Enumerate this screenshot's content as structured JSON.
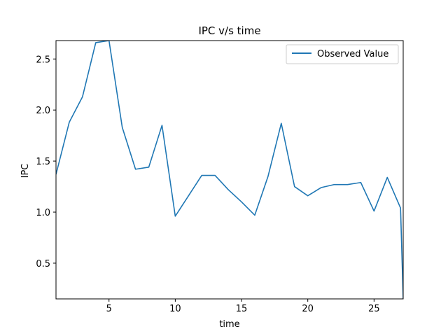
{
  "chart_data": {
    "type": "line",
    "title": "IPC v/s time",
    "xlabel": "time",
    "ylabel": "IPC",
    "xlim": [
      1,
      27.2
    ],
    "ylim": [
      0.15,
      2.68
    ],
    "xticks": [
      5,
      10,
      15,
      20,
      25
    ],
    "yticks": [
      0.5,
      1.0,
      1.5,
      2.0,
      2.5
    ],
    "xtick_labels": [
      "5",
      "10",
      "15",
      "20",
      "25"
    ],
    "ytick_labels": [
      "0.5",
      "1.0",
      "1.5",
      "2.0",
      "2.5"
    ],
    "legend_position": "top-right",
    "grid": false,
    "series": [
      {
        "name": "Observed Value",
        "color": "#1f77b4",
        "x": [
          1,
          2,
          3,
          4,
          5,
          6,
          7,
          8,
          9,
          10,
          11,
          12,
          13,
          14,
          15,
          16,
          17,
          18,
          19,
          20,
          21,
          22,
          23,
          24,
          25,
          26,
          27,
          27.2
        ],
        "y": [
          1.37,
          1.88,
          2.13,
          2.66,
          2.68,
          1.83,
          1.42,
          1.44,
          1.85,
          0.96,
          1.16,
          1.36,
          1.36,
          1.22,
          1.1,
          0.97,
          1.35,
          1.87,
          1.25,
          1.16,
          1.24,
          1.27,
          1.27,
          1.29,
          1.01,
          1.34,
          1.04,
          0.15
        ]
      }
    ]
  }
}
